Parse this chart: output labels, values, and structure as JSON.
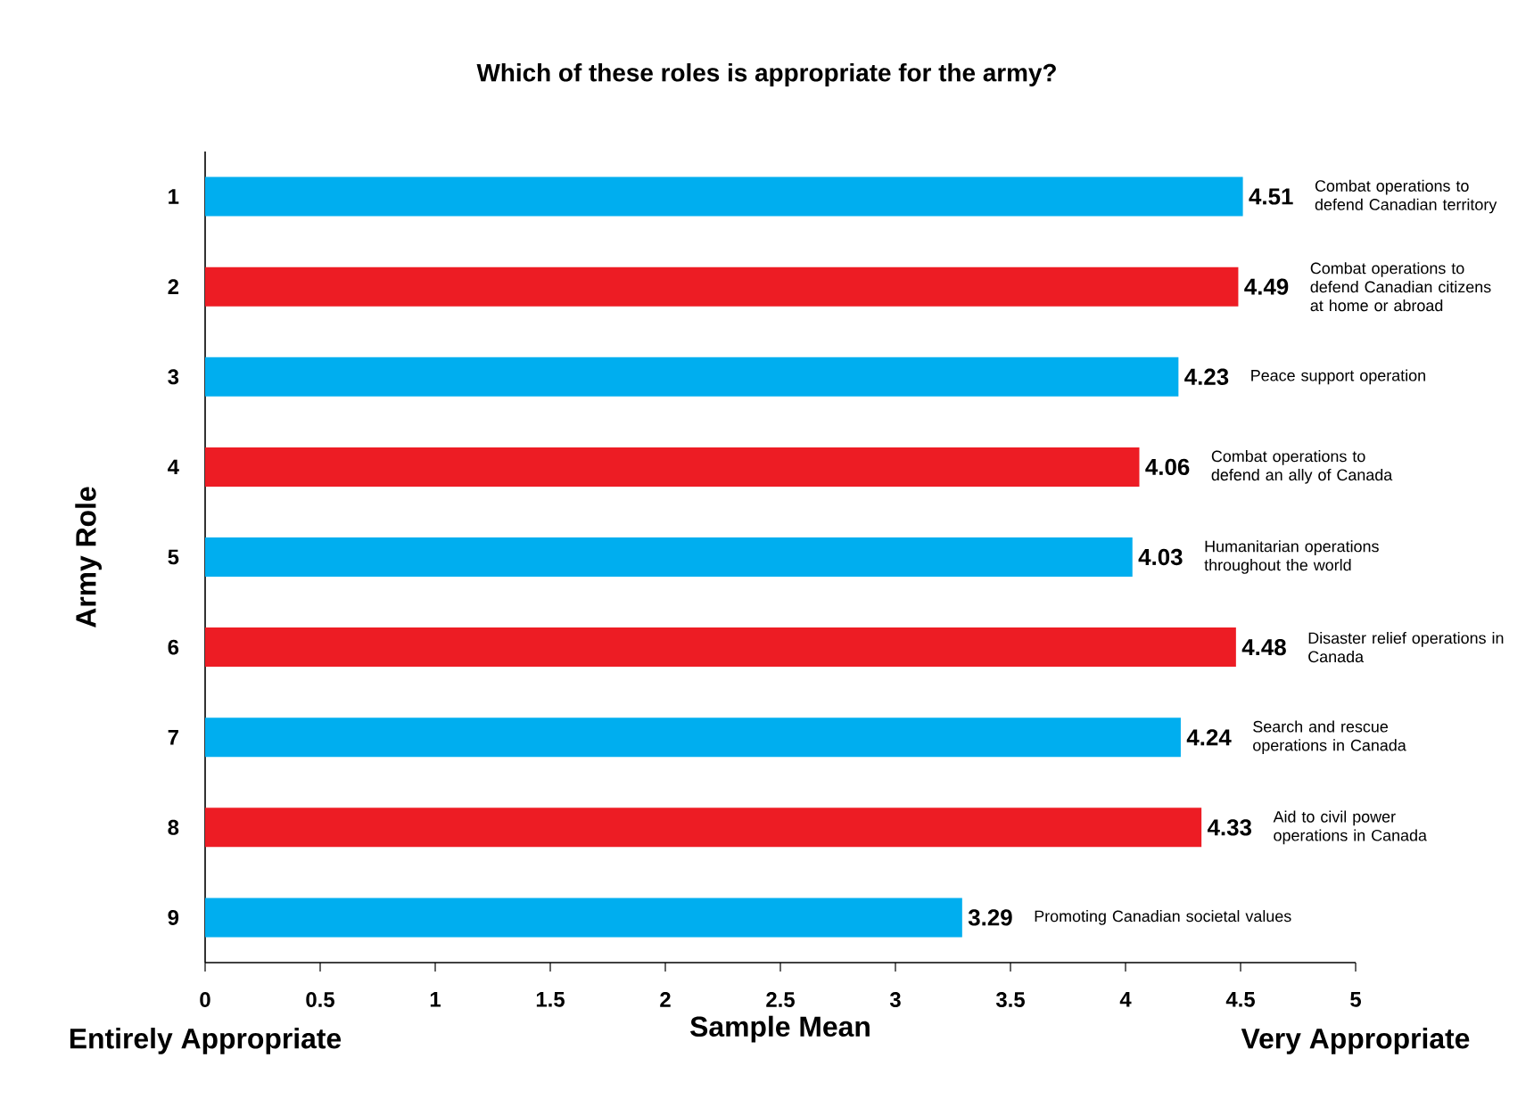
{
  "chart_data": {
    "type": "bar",
    "orientation": "horizontal",
    "title": "Which of these roles is appropriate for the army?",
    "xlabel": "Sample Mean",
    "ylabel": "Army Role",
    "categories": [
      "1",
      "2",
      "3",
      "4",
      "5",
      "6",
      "7",
      "8",
      "9"
    ],
    "values": [
      4.51,
      4.49,
      4.23,
      4.06,
      4.03,
      4.48,
      4.24,
      4.33,
      3.29
    ],
    "colors": [
      "#00aeef",
      "#ed1c24",
      "#00aeef",
      "#ed1c24",
      "#00aeef",
      "#ed1c24",
      "#00aeef",
      "#ed1c24",
      "#00aeef"
    ],
    "xlim": [
      0,
      5
    ],
    "xticks": [
      0,
      0.5,
      1,
      1.5,
      2,
      2.5,
      3,
      3.5,
      4,
      4.5,
      5
    ],
    "data_labels": true,
    "annotations": [
      "Combat operations to defend Canadian territory",
      "Combat operations to defend Canadian citizens at home or abroad",
      "Peace support operation",
      "Combat operations to defend an ally of Canada",
      "Humanitarian operations throughout the world",
      "Disaster relief operations in Canada",
      "Search and rescue operations in Canada",
      "Aid to civil power operations in Canada",
      "Promoting Canadian societal values",
      "Entirely Appropriate",
      "Very Appropriate"
    ]
  }
}
